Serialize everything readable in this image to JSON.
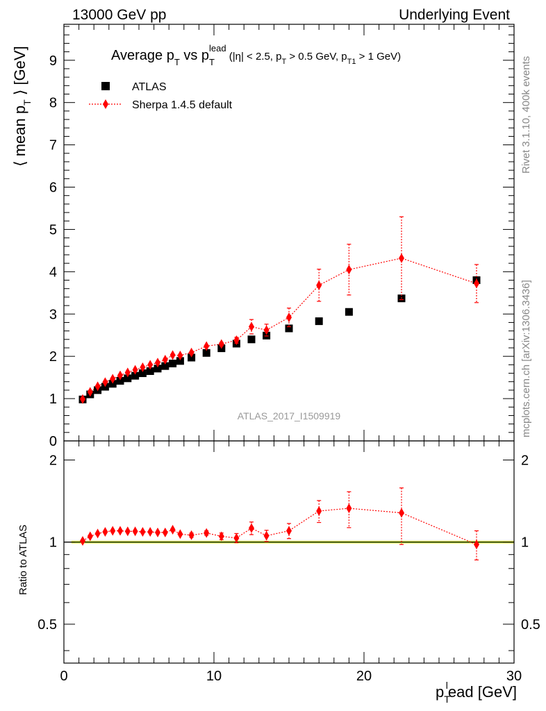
{
  "header": {
    "left": "13000 GeV pp",
    "right": "Underlying Event"
  },
  "side_labels": {
    "rivet": "Rivet 3.1.10,  400k events",
    "mcplots": "mcplots.cern.ch [arXiv:1306.3436]"
  },
  "chart_data": {
    "type": "scatter",
    "title": {
      "t1": "Average p",
      "t1_sub": "T",
      "t2": " vs p",
      "t2_sub": "T",
      "t2_sup": "lead",
      "t3": " (|η| < 2.5, p",
      "t3_sub": "T",
      "t4": " > 0.5 GeV, p",
      "t4_sub": "T1",
      "t5": " > 1 GeV)"
    },
    "watermark": "ATLAS_2017_I1509919",
    "ylabel_main": {
      "a": "⟨ mean p",
      "sub": "T",
      "b": " ⟩ [GeV]"
    },
    "ylabel_ratio": "Ratio to ATLAS",
    "xlabel": {
      "p": "p",
      "sub": "T",
      "sup": "l",
      "rest": "ead [GeV]"
    },
    "xlim": [
      0,
      30
    ],
    "ylim_main": [
      0,
      9.85
    ],
    "ylim_ratio": [
      0.36,
      2.35
    ],
    "ratio_log": true,
    "x_ticks": [
      0,
      10,
      20,
      30
    ],
    "y_ticks_main": [
      0,
      1,
      2,
      3,
      4,
      5,
      6,
      7,
      8,
      9
    ],
    "y_ticks_ratio": [
      0.5,
      1,
      2
    ],
    "legend": [
      {
        "name": "ATLAS",
        "marker": "square",
        "color": "#000000"
      },
      {
        "name": "Sherpa 1.4.5 default",
        "marker": "diamond",
        "color": "#ff0000"
      }
    ],
    "series": [
      {
        "name": "ATLAS",
        "x": [
          1.25,
          1.75,
          2.25,
          2.75,
          3.25,
          3.75,
          4.25,
          4.75,
          5.25,
          5.75,
          6.25,
          6.75,
          7.25,
          7.75,
          8.5,
          9.5,
          10.5,
          11.5,
          12.5,
          13.5,
          15,
          17,
          19,
          22.5,
          27.5
        ],
        "y": [
          0.98,
          1.1,
          1.2,
          1.28,
          1.35,
          1.42,
          1.48,
          1.54,
          1.6,
          1.65,
          1.71,
          1.77,
          1.83,
          1.89,
          1.97,
          2.08,
          2.19,
          2.3,
          2.4,
          2.49,
          2.66,
          2.83,
          3.05,
          3.37,
          3.8
        ]
      },
      {
        "name": "Sherpa 1.4.5 default",
        "x": [
          1.25,
          1.75,
          2.25,
          2.75,
          3.25,
          3.75,
          4.25,
          4.75,
          5.25,
          5.75,
          6.25,
          6.75,
          7.25,
          7.75,
          8.5,
          9.5,
          10.5,
          11.5,
          12.5,
          13.5,
          15,
          17,
          19,
          22.5,
          27.5
        ],
        "y": [
          0.99,
          1.16,
          1.29,
          1.39,
          1.47,
          1.55,
          1.62,
          1.68,
          1.74,
          1.8,
          1.85,
          1.92,
          2.03,
          2.02,
          2.09,
          2.24,
          2.29,
          2.38,
          2.7,
          2.62,
          2.92,
          3.68,
          4.05,
          4.32,
          3.72
        ],
        "yerr": [
          0.01,
          0.01,
          0.01,
          0.01,
          0.01,
          0.01,
          0.01,
          0.01,
          0.01,
          0.01,
          0.01,
          0.01,
          0.01,
          0.01,
          0.02,
          0.03,
          0.04,
          0.07,
          0.17,
          0.14,
          0.22,
          0.38,
          0.6,
          0.98,
          0.45
        ],
        "ratio": [
          1.01,
          1.05,
          1.075,
          1.09,
          1.1,
          1.1,
          1.095,
          1.095,
          1.09,
          1.09,
          1.085,
          1.085,
          1.11,
          1.07,
          1.06,
          1.08,
          1.05,
          1.035,
          1.125,
          1.055,
          1.1,
          1.3,
          1.33,
          1.28,
          0.98
        ],
        "ratio_err": [
          0.01,
          0.01,
          0.01,
          0.01,
          0.01,
          0.01,
          0.01,
          0.01,
          0.01,
          0.01,
          0.01,
          0.01,
          0.01,
          0.01,
          0.02,
          0.02,
          0.03,
          0.04,
          0.06,
          0.05,
          0.07,
          0.12,
          0.2,
          0.3,
          0.12
        ]
      }
    ],
    "ratio_band": {
      "color_inner": "#00e000",
      "color_outer": "#ffff66"
    }
  }
}
